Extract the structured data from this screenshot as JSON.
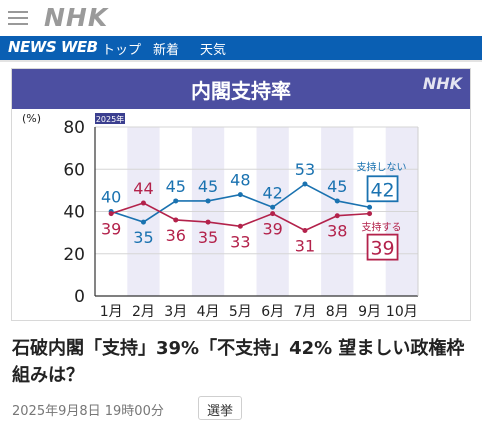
{
  "header": {
    "brand": "NHK",
    "menu_icon": "hamburger-menu-icon"
  },
  "nav": {
    "newsweb": "NEWS WEB",
    "items": [
      "トップ",
      "新着",
      "天気"
    ]
  },
  "chart_panel": {
    "title": "内閣支持率",
    "logo": "NHK"
  },
  "article": {
    "headline": "石破内閣「支持」39%「不支持」42% 望ましい政権枠組みは？",
    "date": "2025年9月8日 19時00分",
    "tag": "選挙"
  },
  "colors": {
    "nhk_blue": "#0a5fb3",
    "header_purple": "#4c4fa1",
    "approve": "#b3224b",
    "disapprove": "#1a72b0",
    "band": "#ecebf7"
  },
  "chart_data": {
    "type": "line",
    "title": "内閣支持率",
    "ylabel": "(%)",
    "year_tag": "2025年",
    "categories": [
      "1月",
      "2月",
      "3月",
      "4月",
      "5月",
      "6月",
      "7月",
      "8月",
      "9月",
      "10月"
    ],
    "yticks": [
      0,
      20,
      40,
      60,
      80
    ],
    "ylim": [
      0,
      80
    ],
    "grid": true,
    "series": [
      {
        "name": "支持しない",
        "values": [
          40,
          35,
          45,
          45,
          48,
          42,
          53,
          45,
          42,
          null
        ],
        "color": "#1a72b0"
      },
      {
        "name": "支持する",
        "values": [
          39,
          44,
          36,
          35,
          33,
          39,
          31,
          38,
          39,
          null
        ],
        "color": "#b3224b"
      }
    ]
  }
}
